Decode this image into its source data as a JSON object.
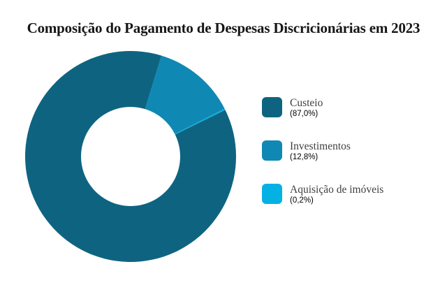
{
  "title": "Composição do Pagamento de Despesas Discricionárias em 2023",
  "chart_data": {
    "type": "pie",
    "subtype": "donut",
    "title": "Composição do Pagamento de Despesas Discricionárias em 2023",
    "slices": [
      {
        "id": "custeio",
        "label": "Custeio",
        "value_pct": 87.0,
        "percent_display": "(87,0%)",
        "color": "#0e6480"
      },
      {
        "id": "investimentos",
        "label": "Investimentos",
        "value_pct": 12.8,
        "percent_display": "(12,8%)",
        "color": "#0f89b4"
      },
      {
        "id": "aquisicao-de-imoveis",
        "label": "Aquisição de imóveis",
        "value_pct": 0.2,
        "percent_display": "(0,2%)",
        "color": "#04b1e4"
      }
    ],
    "legend_position": "right",
    "start_angle_deg": 17,
    "clockwise_slice_order": [
      1,
      2,
      0
    ],
    "inner_radius_ratio": 0.47
  }
}
